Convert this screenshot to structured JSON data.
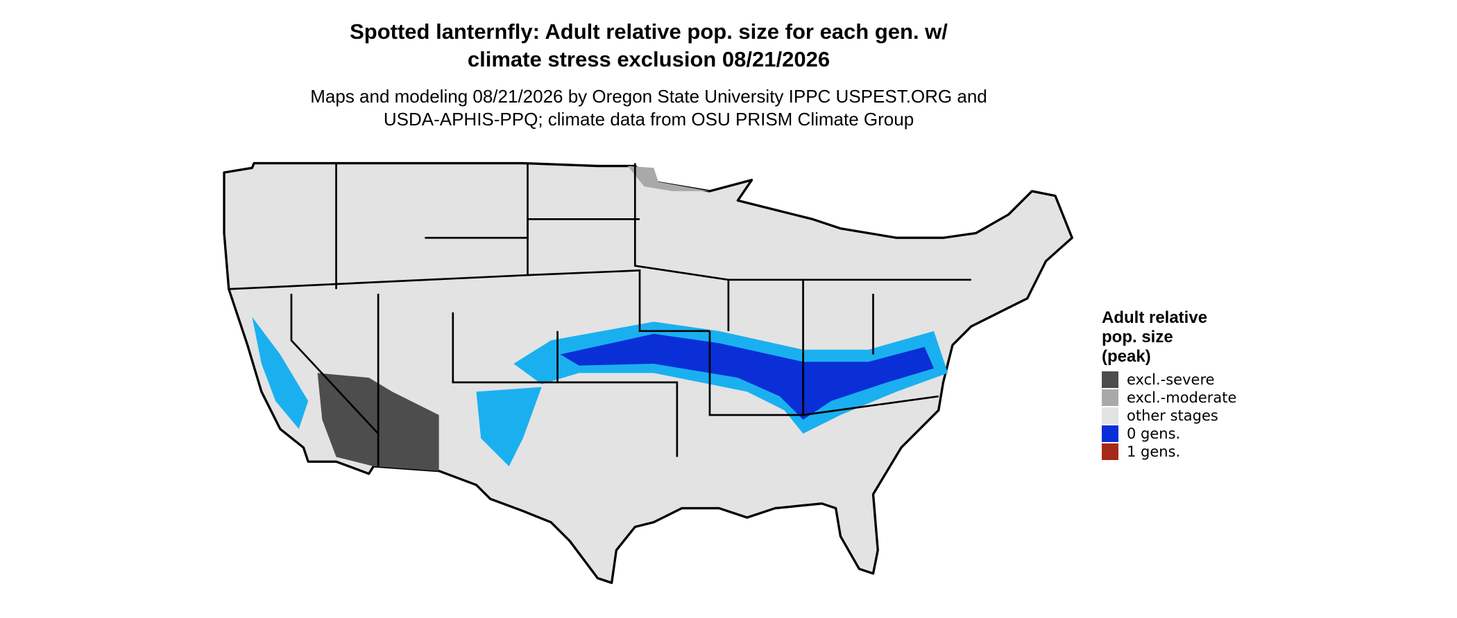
{
  "title": [
    "Spotted lanternfly: Adult relative pop. size for each gen. w/",
    "climate stress exclusion 08/21/2026"
  ],
  "subtitle": [
    "Maps and modeling 08/21/2026 by Oregon State University IPPC USPEST.ORG and",
    "USDA-APHIS-PPQ; climate data from OSU PRISM Climate Group"
  ],
  "legend": {
    "title": [
      "Adult relative",
      "pop. size",
      "(peak)"
    ],
    "items": [
      {
        "label": "excl.-severe",
        "color": "#4d4d4d"
      },
      {
        "label": "excl.-moderate",
        "color": "#a9a9a9"
      },
      {
        "label": "other stages",
        "color": "#e3e3e3"
      },
      {
        "label": "0 gens.",
        "color": "#0a2fd6"
      },
      {
        "label": "1 gens.",
        "color": "#a52a1a"
      }
    ]
  }
}
